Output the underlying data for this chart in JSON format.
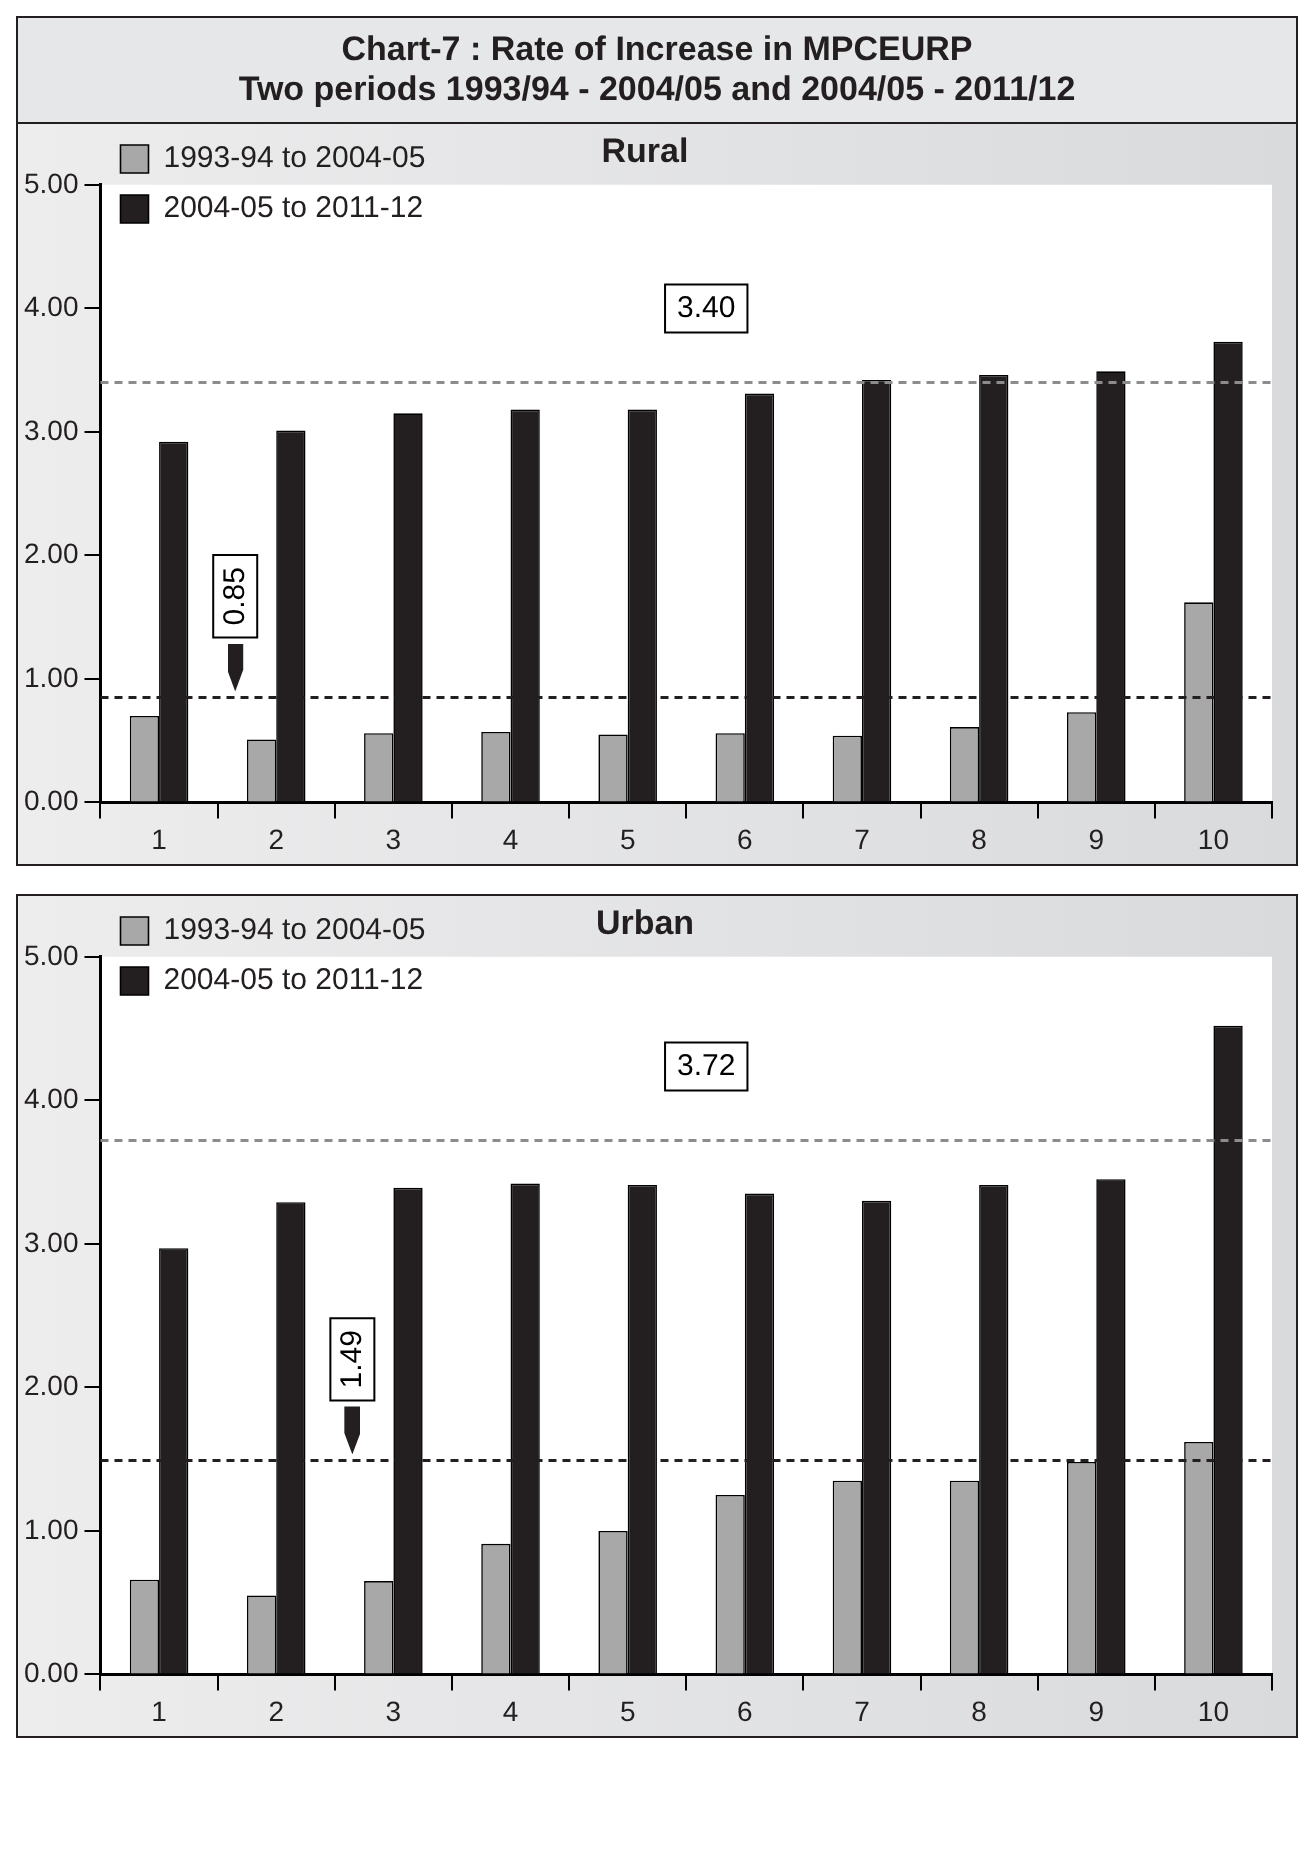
{
  "chart_data": [
    {
      "type": "other",
      "title": "Chart-7 : Rate of Increase in MPCEURP",
      "subtitle": "Two periods 1993/94 - 2004/05 and 2004/05 - 2011/12"
    },
    {
      "type": "bar",
      "title": "Rural",
      "categories": [
        "1",
        "2",
        "3",
        "4",
        "5",
        "6",
        "7",
        "8",
        "9",
        "10"
      ],
      "series": [
        {
          "name": "1993-94 to 2004-05",
          "color": "#a8a8a8",
          "values": [
            0.7,
            0.51,
            0.56,
            0.57,
            0.55,
            0.56,
            0.54,
            0.61,
            0.73,
            1.62
          ]
        },
        {
          "name": "2004-05 to 2011-12",
          "color": "#231f20",
          "values": [
            2.92,
            3.01,
            3.15,
            3.18,
            3.18,
            3.31,
            3.42,
            3.46,
            3.49,
            3.73
          ]
        }
      ],
      "ylim": [
        0,
        5
      ],
      "yticks": [
        {
          "value": 0,
          "label": "0.00"
        },
        {
          "value": 1,
          "label": "1.00"
        },
        {
          "value": 2,
          "label": "2.00"
        },
        {
          "value": 3,
          "label": "3.00"
        },
        {
          "value": 4,
          "label": "4.00"
        },
        {
          "value": 5,
          "label": "5.00"
        }
      ],
      "ref_lines": [
        {
          "axis": "y",
          "value": 0.85,
          "label": "0.85",
          "color": "#231f20",
          "line_style": "dashed"
        },
        {
          "axis": "y",
          "value": 3.4,
          "label": "3.40",
          "color": "#8c8c8c",
          "line_style": "dashed"
        }
      ],
      "legend": "top left",
      "grid": false
    },
    {
      "type": "bar",
      "title": "Urban",
      "categories": [
        "1",
        "2",
        "3",
        "4",
        "5",
        "6",
        "7",
        "8",
        "9",
        "10"
      ],
      "series": [
        {
          "name": "1993-94 to 2004-05",
          "color": "#a8a8a8",
          "values": [
            0.66,
            0.55,
            0.65,
            0.91,
            1.0,
            1.25,
            1.35,
            1.35,
            1.48,
            1.62
          ]
        },
        {
          "name": "2004-05 to 2011-12",
          "color": "#231f20",
          "values": [
            2.97,
            3.29,
            3.39,
            3.42,
            3.41,
            3.35,
            3.3,
            3.41,
            3.45,
            4.52
          ]
        }
      ],
      "ylim": [
        0,
        5
      ],
      "yticks": [
        {
          "value": 0,
          "label": "0.00"
        },
        {
          "value": 1,
          "label": "1.00"
        },
        {
          "value": 2,
          "label": "2.00"
        },
        {
          "value": 3,
          "label": "3.00"
        },
        {
          "value": 4,
          "label": "4.00"
        },
        {
          "value": 5,
          "label": "5.00"
        }
      ],
      "ref_lines": [
        {
          "axis": "y",
          "value": 1.49,
          "label": "1.49",
          "color": "#231f20",
          "line_style": "dashed"
        },
        {
          "axis": "y",
          "value": 3.72,
          "label": "3.72",
          "color": "#8c8c8c",
          "line_style": "dashed"
        }
      ],
      "legend": "top left",
      "grid": false
    }
  ]
}
